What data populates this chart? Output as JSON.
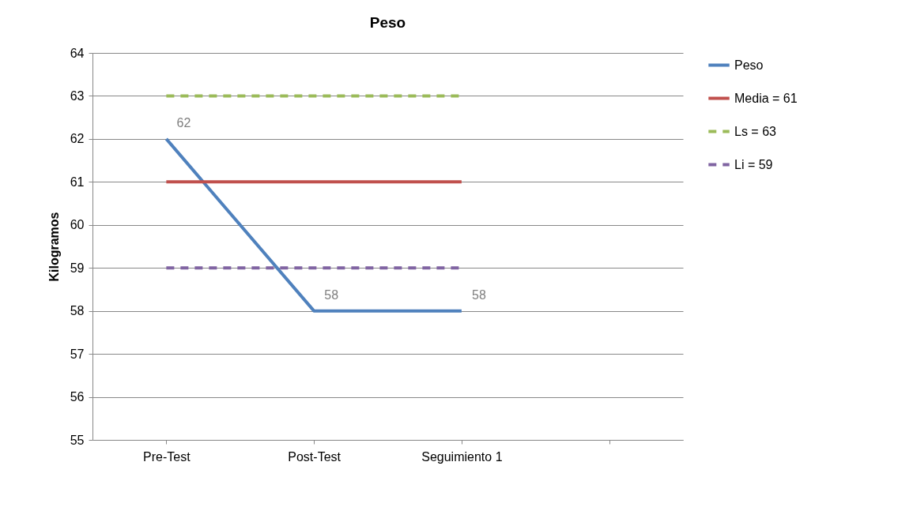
{
  "chart_data": {
    "type": "line",
    "title": "Peso",
    "ylabel": "Kilogramos",
    "categories": [
      "Pre-Test",
      "Post-Test",
      "Seguimiento 1",
      null
    ],
    "series": [
      {
        "name": "Peso",
        "color": "#4f81bd",
        "values": [
          62,
          58,
          58,
          null
        ],
        "value_labels": [
          "62",
          "58",
          "58",
          null
        ]
      },
      {
        "name": "Media = 61",
        "color": "#c0504d",
        "values": [
          61,
          61,
          61,
          null
        ]
      },
      {
        "name": "Ls = 63",
        "color": "#9bbb59",
        "values": [
          63,
          63,
          63,
          null
        ],
        "line_style": "dashed"
      },
      {
        "name": "Li = 59",
        "color": "#8064a2",
        "values": [
          59,
          59,
          59,
          null
        ],
        "line_style": "dashed"
      }
    ],
    "ylim": [
      55,
      64
    ],
    "yticks": [
      55,
      56,
      57,
      58,
      59,
      60,
      61,
      62,
      63,
      64
    ],
    "grid": "y",
    "legend": "right",
    "marker": "none"
  }
}
